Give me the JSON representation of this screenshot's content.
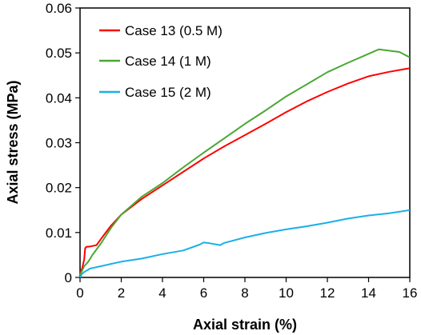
{
  "chart_data": {
    "type": "line",
    "xlabel": "Axial strain (%)",
    "ylabel": "Axial stress (MPa)",
    "xlim": [
      0,
      16
    ],
    "ylim": [
      0,
      0.06
    ],
    "x_ticks": [
      0,
      2,
      4,
      6,
      8,
      10,
      12,
      14,
      16
    ],
    "x_tick_labels": [
      "0",
      "2",
      "4",
      "6",
      "8",
      "10",
      "12",
      "14",
      "16"
    ],
    "y_ticks": [
      0,
      0.01,
      0.02,
      0.03,
      0.04,
      0.05,
      0.06
    ],
    "y_tick_labels": [
      "0",
      "0.01",
      "0.02",
      "0.03",
      "0.04",
      "0.05",
      "0.06"
    ],
    "grid": false,
    "legend_position": "top-left",
    "series": [
      {
        "name": "Case 13 (0.5 M)",
        "color": "#ff0000",
        "x": [
          0,
          0.1,
          0.2,
          0.25,
          0.3,
          0.5,
          0.8,
          1,
          1.5,
          2,
          3,
          4,
          5,
          6,
          7,
          8,
          9,
          10,
          11,
          12,
          13,
          14,
          15,
          16
        ],
        "y": [
          0.001,
          0.002,
          0.004,
          0.0065,
          0.0068,
          0.0069,
          0.0072,
          0.0085,
          0.0115,
          0.014,
          0.0175,
          0.0205,
          0.0235,
          0.0265,
          0.0292,
          0.0317,
          0.0342,
          0.0368,
          0.0392,
          0.0413,
          0.0432,
          0.0448,
          0.0458,
          0.0466
        ]
      },
      {
        "name": "Case 14 (1 M)",
        "color": "#4aa834",
        "x": [
          0,
          0.1,
          0.2,
          0.4,
          0.6,
          1,
          1.5,
          2,
          3,
          4,
          5,
          6,
          7,
          8,
          9,
          10,
          11,
          12,
          13,
          14,
          14.5,
          15,
          15.5,
          16
        ],
        "y": [
          0.0005,
          0.0015,
          0.0025,
          0.0035,
          0.005,
          0.0075,
          0.011,
          0.014,
          0.018,
          0.021,
          0.0245,
          0.0278,
          0.031,
          0.0342,
          0.0372,
          0.0403,
          0.043,
          0.0457,
          0.0478,
          0.0498,
          0.0508,
          0.0505,
          0.0502,
          0.049
        ]
      },
      {
        "name": "Case 15 (2 M)",
        "color": "#1ab0e8",
        "x": [
          0,
          0.1,
          0.2,
          0.5,
          1,
          1.5,
          2,
          3,
          4,
          5,
          5.8,
          6,
          6.3,
          6.8,
          7,
          8,
          9,
          10,
          11,
          12,
          13,
          14,
          15,
          16
        ],
        "y": [
          0,
          0.0008,
          0.0012,
          0.002,
          0.0025,
          0.003,
          0.0035,
          0.0042,
          0.0052,
          0.006,
          0.0073,
          0.0078,
          0.0076,
          0.0072,
          0.0077,
          0.0089,
          0.0099,
          0.0107,
          0.0114,
          0.0122,
          0.0131,
          0.0138,
          0.0143,
          0.015
        ]
      }
    ]
  }
}
